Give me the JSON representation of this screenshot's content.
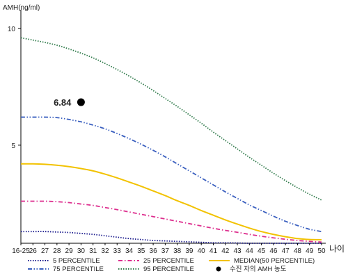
{
  "chart_data": {
    "type": "line",
    "ylabel": "AMH(ng/ml)",
    "xlabel": "나이",
    "x_ticks": [
      "16-25",
      "26",
      "27",
      "28",
      "29",
      "30",
      "31",
      "32",
      "33",
      "34",
      "35",
      "36",
      "37",
      "38",
      "39",
      "40",
      "41",
      "42",
      "43",
      "44",
      "45",
      "46",
      "47",
      "48",
      "49",
      "50"
    ],
    "y_ticks": [
      "10",
      "5"
    ],
    "ylim": [
      0.8,
      10.8
    ],
    "grid": false,
    "legend_position": "bottom",
    "series": [
      {
        "name": "5 PERCENTILE",
        "style": "dotted",
        "color": "#1a1a8c",
        "values": [
          1.3,
          1.3,
          1.3,
          1.28,
          1.26,
          1.22,
          1.18,
          1.12,
          1.06,
          1.0,
          0.96,
          0.92,
          0.9,
          0.88,
          0.86,
          0.84,
          0.82,
          0.82,
          0.81,
          0.8,
          0.8,
          0.8,
          0.8,
          0.8,
          0.8,
          0.8
        ]
      },
      {
        "name": "25 PERCENTILE",
        "style": "dash-dot",
        "color": "#dd2e8e",
        "values": [
          2.6,
          2.6,
          2.6,
          2.58,
          2.54,
          2.48,
          2.42,
          2.33,
          2.24,
          2.14,
          2.04,
          1.94,
          1.84,
          1.74,
          1.64,
          1.54,
          1.44,
          1.35,
          1.27,
          1.18,
          1.1,
          1.03,
          0.97,
          0.92,
          0.88,
          0.85
        ]
      },
      {
        "name": "MEDIAN(50 PERCENTILE)",
        "style": "solid",
        "color": "#f2c200",
        "values": [
          4.2,
          4.2,
          4.18,
          4.14,
          4.08,
          4.0,
          3.9,
          3.76,
          3.6,
          3.42,
          3.24,
          3.04,
          2.84,
          2.62,
          2.42,
          2.2,
          2.0,
          1.8,
          1.62,
          1.45,
          1.3,
          1.18,
          1.08,
          1.0,
          0.96,
          0.95
        ]
      },
      {
        "name": "75 PERCENTILE",
        "style": "dash-dot-dot",
        "color": "#3a5fbf",
        "values": [
          6.2,
          6.2,
          6.2,
          6.18,
          6.1,
          6.0,
          5.86,
          5.7,
          5.5,
          5.28,
          5.04,
          4.78,
          4.5,
          4.2,
          3.9,
          3.6,
          3.3,
          3.0,
          2.72,
          2.44,
          2.2,
          1.96,
          1.74,
          1.56,
          1.4,
          1.3
        ]
      },
      {
        "name": "95 PERCENTILE",
        "style": "dotted",
        "color": "#2f7a4a",
        "values": [
          9.6,
          9.5,
          9.4,
          9.28,
          9.12,
          8.94,
          8.74,
          8.5,
          8.24,
          7.96,
          7.66,
          7.34,
          7.0,
          6.66,
          6.3,
          5.94,
          5.56,
          5.2,
          4.84,
          4.48,
          4.14,
          3.8,
          3.48,
          3.18,
          2.9,
          2.65
        ]
      }
    ],
    "marker": {
      "label": "수진 자의 AMH 농도",
      "x": "30",
      "y": 6.84,
      "value_label": "6.84",
      "color": "#000000"
    }
  }
}
